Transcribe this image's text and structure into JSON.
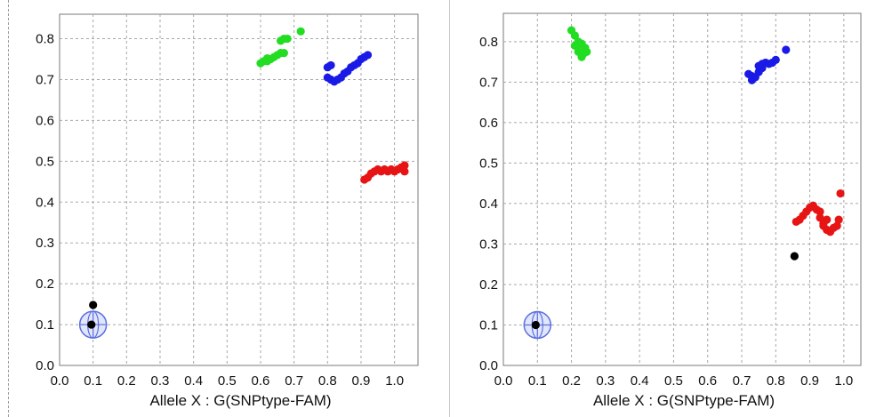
{
  "chart_data": [
    {
      "type": "scatter",
      "title": "",
      "xlabel": "Allele X : G(SNPtype-FAM)",
      "ylabel": "",
      "xlim": [
        0.0,
        1.07
      ],
      "ylim": [
        0.0,
        0.86
      ],
      "grid": true,
      "xticks": [
        "0.0",
        "0.1",
        "0.2",
        "0.3",
        "0.4",
        "0.5",
        "0.6",
        "0.7",
        "0.8",
        "0.9",
        "1.0"
      ],
      "yticks": [
        "0.0",
        "0.1",
        "0.2",
        "0.3",
        "0.4",
        "0.5",
        "0.6",
        "0.7",
        "0.8"
      ],
      "colors": {
        "green": "#22dd22",
        "blue": "#1a1ae6",
        "red": "#e61414",
        "black": "#000000",
        "ntc_marker": "#5a6fe0"
      },
      "ntc_marker": {
        "x": 0.1,
        "y": 0.1
      },
      "series": [
        {
          "color": "green",
          "points": [
            [
              0.6,
              0.74
            ],
            [
              0.61,
              0.745
            ],
            [
              0.62,
              0.745
            ],
            [
              0.62,
              0.752
            ],
            [
              0.63,
              0.75
            ],
            [
              0.64,
              0.755
            ],
            [
              0.65,
              0.76
            ],
            [
              0.66,
              0.765
            ],
            [
              0.67,
              0.765
            ],
            [
              0.66,
              0.795
            ],
            [
              0.67,
              0.8
            ],
            [
              0.68,
              0.8
            ],
            [
              0.72,
              0.818
            ]
          ]
        },
        {
          "color": "blue",
          "points": [
            [
              0.8,
              0.73
            ],
            [
              0.81,
              0.735
            ],
            [
              0.8,
              0.705
            ],
            [
              0.81,
              0.7
            ],
            [
              0.82,
              0.695
            ],
            [
              0.83,
              0.7
            ],
            [
              0.84,
              0.705
            ],
            [
              0.85,
              0.715
            ],
            [
              0.86,
              0.72
            ],
            [
              0.87,
              0.73
            ],
            [
              0.88,
              0.735
            ],
            [
              0.89,
              0.74
            ],
            [
              0.9,
              0.75
            ],
            [
              0.91,
              0.755
            ],
            [
              0.92,
              0.76
            ]
          ]
        },
        {
          "color": "red",
          "points": [
            [
              0.91,
              0.455
            ],
            [
              0.92,
              0.46
            ],
            [
              0.93,
              0.47
            ],
            [
              0.94,
              0.475
            ],
            [
              0.95,
              0.48
            ],
            [
              0.96,
              0.475
            ],
            [
              0.97,
              0.48
            ],
            [
              0.98,
              0.475
            ],
            [
              0.99,
              0.48
            ],
            [
              1.0,
              0.475
            ],
            [
              1.01,
              0.48
            ],
            [
              1.02,
              0.485
            ],
            [
              1.03,
              0.49
            ],
            [
              1.03,
              0.475
            ]
          ]
        },
        {
          "color": "black",
          "points": [
            [
              0.1,
              0.148
            ],
            [
              0.095,
              0.1
            ]
          ]
        }
      ]
    },
    {
      "type": "scatter",
      "title": "",
      "xlabel": "Allele X : G(SNPtype-FAM)",
      "ylabel": "",
      "xlim": [
        0.0,
        1.05
      ],
      "ylim": [
        0.0,
        0.87
      ],
      "grid": true,
      "xticks": [
        "0.0",
        "0.1",
        "0.2",
        "0.3",
        "0.4",
        "0.5",
        "0.6",
        "0.7",
        "0.8",
        "0.9",
        "1.0"
      ],
      "yticks": [
        "0.0",
        "0.1",
        "0.2",
        "0.3",
        "0.4",
        "0.5",
        "0.6",
        "0.7",
        "0.8"
      ],
      "colors": {
        "green": "#22dd22",
        "blue": "#1a1ae6",
        "red": "#e61414",
        "black": "#000000",
        "ntc_marker": "#5a6fe0"
      },
      "ntc_marker": {
        "x": 0.1,
        "y": 0.1
      },
      "series": [
        {
          "color": "green",
          "points": [
            [
              0.2,
              0.828
            ],
            [
              0.21,
              0.815
            ],
            [
              0.22,
              0.8
            ],
            [
              0.22,
              0.79
            ],
            [
              0.23,
              0.795
            ],
            [
              0.24,
              0.785
            ],
            [
              0.245,
              0.775
            ],
            [
              0.235,
              0.77
            ],
            [
              0.23,
              0.762
            ],
            [
              0.22,
              0.775
            ],
            [
              0.21,
              0.79
            ]
          ]
        },
        {
          "color": "blue",
          "points": [
            [
              0.72,
              0.72
            ],
            [
              0.73,
              0.715
            ],
            [
              0.73,
              0.705
            ],
            [
              0.74,
              0.712
            ],
            [
              0.75,
              0.725
            ],
            [
              0.75,
              0.74
            ],
            [
              0.76,
              0.735
            ],
            [
              0.76,
              0.745
            ],
            [
              0.77,
              0.748
            ],
            [
              0.78,
              0.745
            ],
            [
              0.79,
              0.748
            ],
            [
              0.8,
              0.755
            ],
            [
              0.83,
              0.78
            ]
          ]
        },
        {
          "color": "red",
          "points": [
            [
              0.86,
              0.355
            ],
            [
              0.87,
              0.36
            ],
            [
              0.88,
              0.37
            ],
            [
              0.89,
              0.38
            ],
            [
              0.9,
              0.39
            ],
            [
              0.91,
              0.395
            ],
            [
              0.92,
              0.385
            ],
            [
              0.93,
              0.38
            ],
            [
              0.93,
              0.365
            ],
            [
              0.94,
              0.345
            ],
            [
              0.95,
              0.335
            ],
            [
              0.96,
              0.33
            ],
            [
              0.97,
              0.34
            ],
            [
              0.98,
              0.345
            ],
            [
              0.985,
              0.36
            ],
            [
              0.95,
              0.36
            ],
            [
              0.94,
              0.35
            ],
            [
              0.99,
              0.425
            ]
          ]
        },
        {
          "color": "black",
          "points": [
            [
              0.855,
              0.27
            ],
            [
              0.095,
              0.1
            ]
          ]
        }
      ]
    }
  ]
}
